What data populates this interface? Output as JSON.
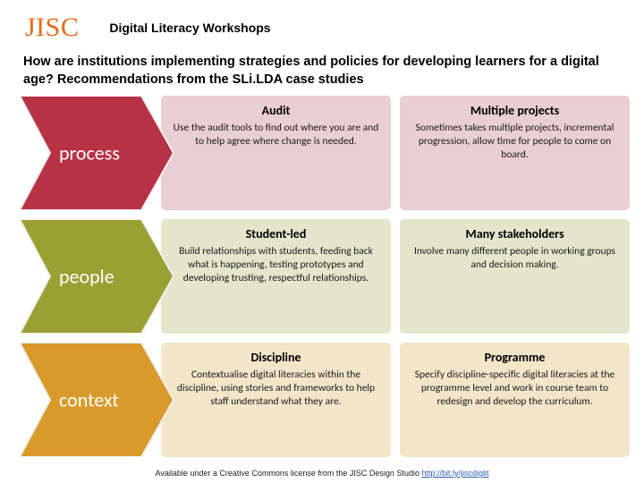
{
  "logo": {
    "text": "JISC",
    "color": "#e86b1c"
  },
  "header_title": "Digital Literacy Workshops",
  "question": "How are institutions implementing strategies and policies for developing learners for a digital age? Recommendations from the SLi.LDA case studies",
  "rows": [
    {
      "label": "process",
      "chevron_fill": "#b83246",
      "chevron_stroke": "#f0f0f0",
      "cell_bg": "#e9cfd3",
      "cells": [
        {
          "title": "Audit",
          "body": "Use the audit tools to find out where you are and to help agree where change is needed."
        },
        {
          "title": "Multiple projects",
          "body": "Sometimes takes multiple projects, incremental progression, allow time for people to come on board."
        }
      ]
    },
    {
      "label": "people",
      "chevron_fill": "#9aa031",
      "chevron_stroke": "#f0f0f0",
      "cell_bg": "#e4e6cb",
      "cells": [
        {
          "title": "Student-led",
          "body": "Build relationships with students, feeding back what is happening, testing prototypes and developing trusting, respectful relationships."
        },
        {
          "title": "Many stakeholders",
          "body": "Involve many different people in working groups and decision making."
        }
      ]
    },
    {
      "label": "context",
      "chevron_fill": "#d99a2b",
      "chevron_stroke": "#f0f0f0",
      "cell_bg": "#f3e5c8",
      "cells": [
        {
          "title": "Discipline",
          "body": "Contextualise digital literacies within the discipline, using stories and frameworks to help staff understand what they are."
        },
        {
          "title": "Programme",
          "body": "Specify discipline-specific digital literacies at the programme level and work in course team to redesign and develop the curriculum."
        }
      ]
    }
  ],
  "footer": {
    "text": "Available under a Creative Commons license from the JISC Design Studio ",
    "link_text": "http://bit.ly/jiscdiglit",
    "link_href": "http://bit.ly/jiscdiglit"
  }
}
